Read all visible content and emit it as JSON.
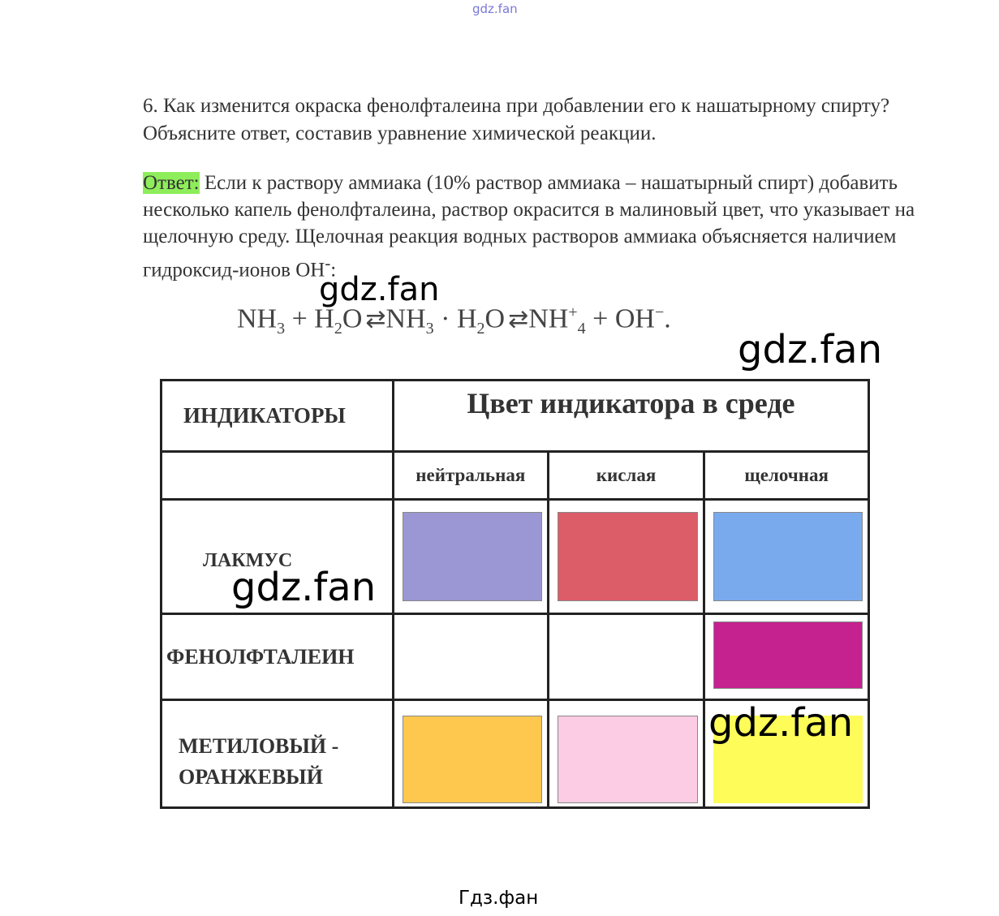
{
  "watermark_top": "gdz.fan",
  "watermark": "gdz.fan",
  "question": "6. Как изменится окраска фенолфталеина при добавлении его к нашатырному спирту? Объясните ответ, составив уравнение химической реакции.",
  "answer_label": "Ответ:",
  "answer_text": " Если к раствору аммиака (10% раствор аммиака – нашатырный спирт) добавить несколько капель фенолфталеина, раствор окрасится в малиновый цвет, что указывает на щелочную среду. Щелочная реакция водных растворов аммиака объясняется наличием гидроксид-ионов OH",
  "answer_sup": "-",
  "answer_end": ":",
  "equation": {
    "p1": "NH",
    "s1": "3",
    "p2": " + H",
    "s2": "2",
    "p3": "O",
    "p4": "NH",
    "s4": "3",
    "p5": " · H",
    "s5": "2",
    "p6": "O",
    "p7": "NH",
    "sup7": "+",
    "s7": "4",
    "p8": " + OH",
    "sup8": "−",
    "p9": "."
  },
  "table": {
    "header_indicators": "ИНДИКАТОРЫ",
    "header_color": "Цвет индикатора в среде",
    "env": [
      "нейтральная",
      "кислая",
      "щелочная"
    ],
    "rows": [
      {
        "name": "ЛАКМУС",
        "colors": [
          "#9b97d4",
          "#dc5c68",
          "#7aaaee"
        ]
      },
      {
        "name": "ФЕНОЛФТАЛЕИН",
        "colors": [
          null,
          null,
          "#c5218f"
        ]
      },
      {
        "name": "МЕТИЛОВЫЙ - ОРАНЖЕВЫЙ",
        "colors": [
          "#fec84f",
          "#fccbe4",
          "#fdfc58"
        ]
      }
    ]
  },
  "footer": "Гдз.фан"
}
